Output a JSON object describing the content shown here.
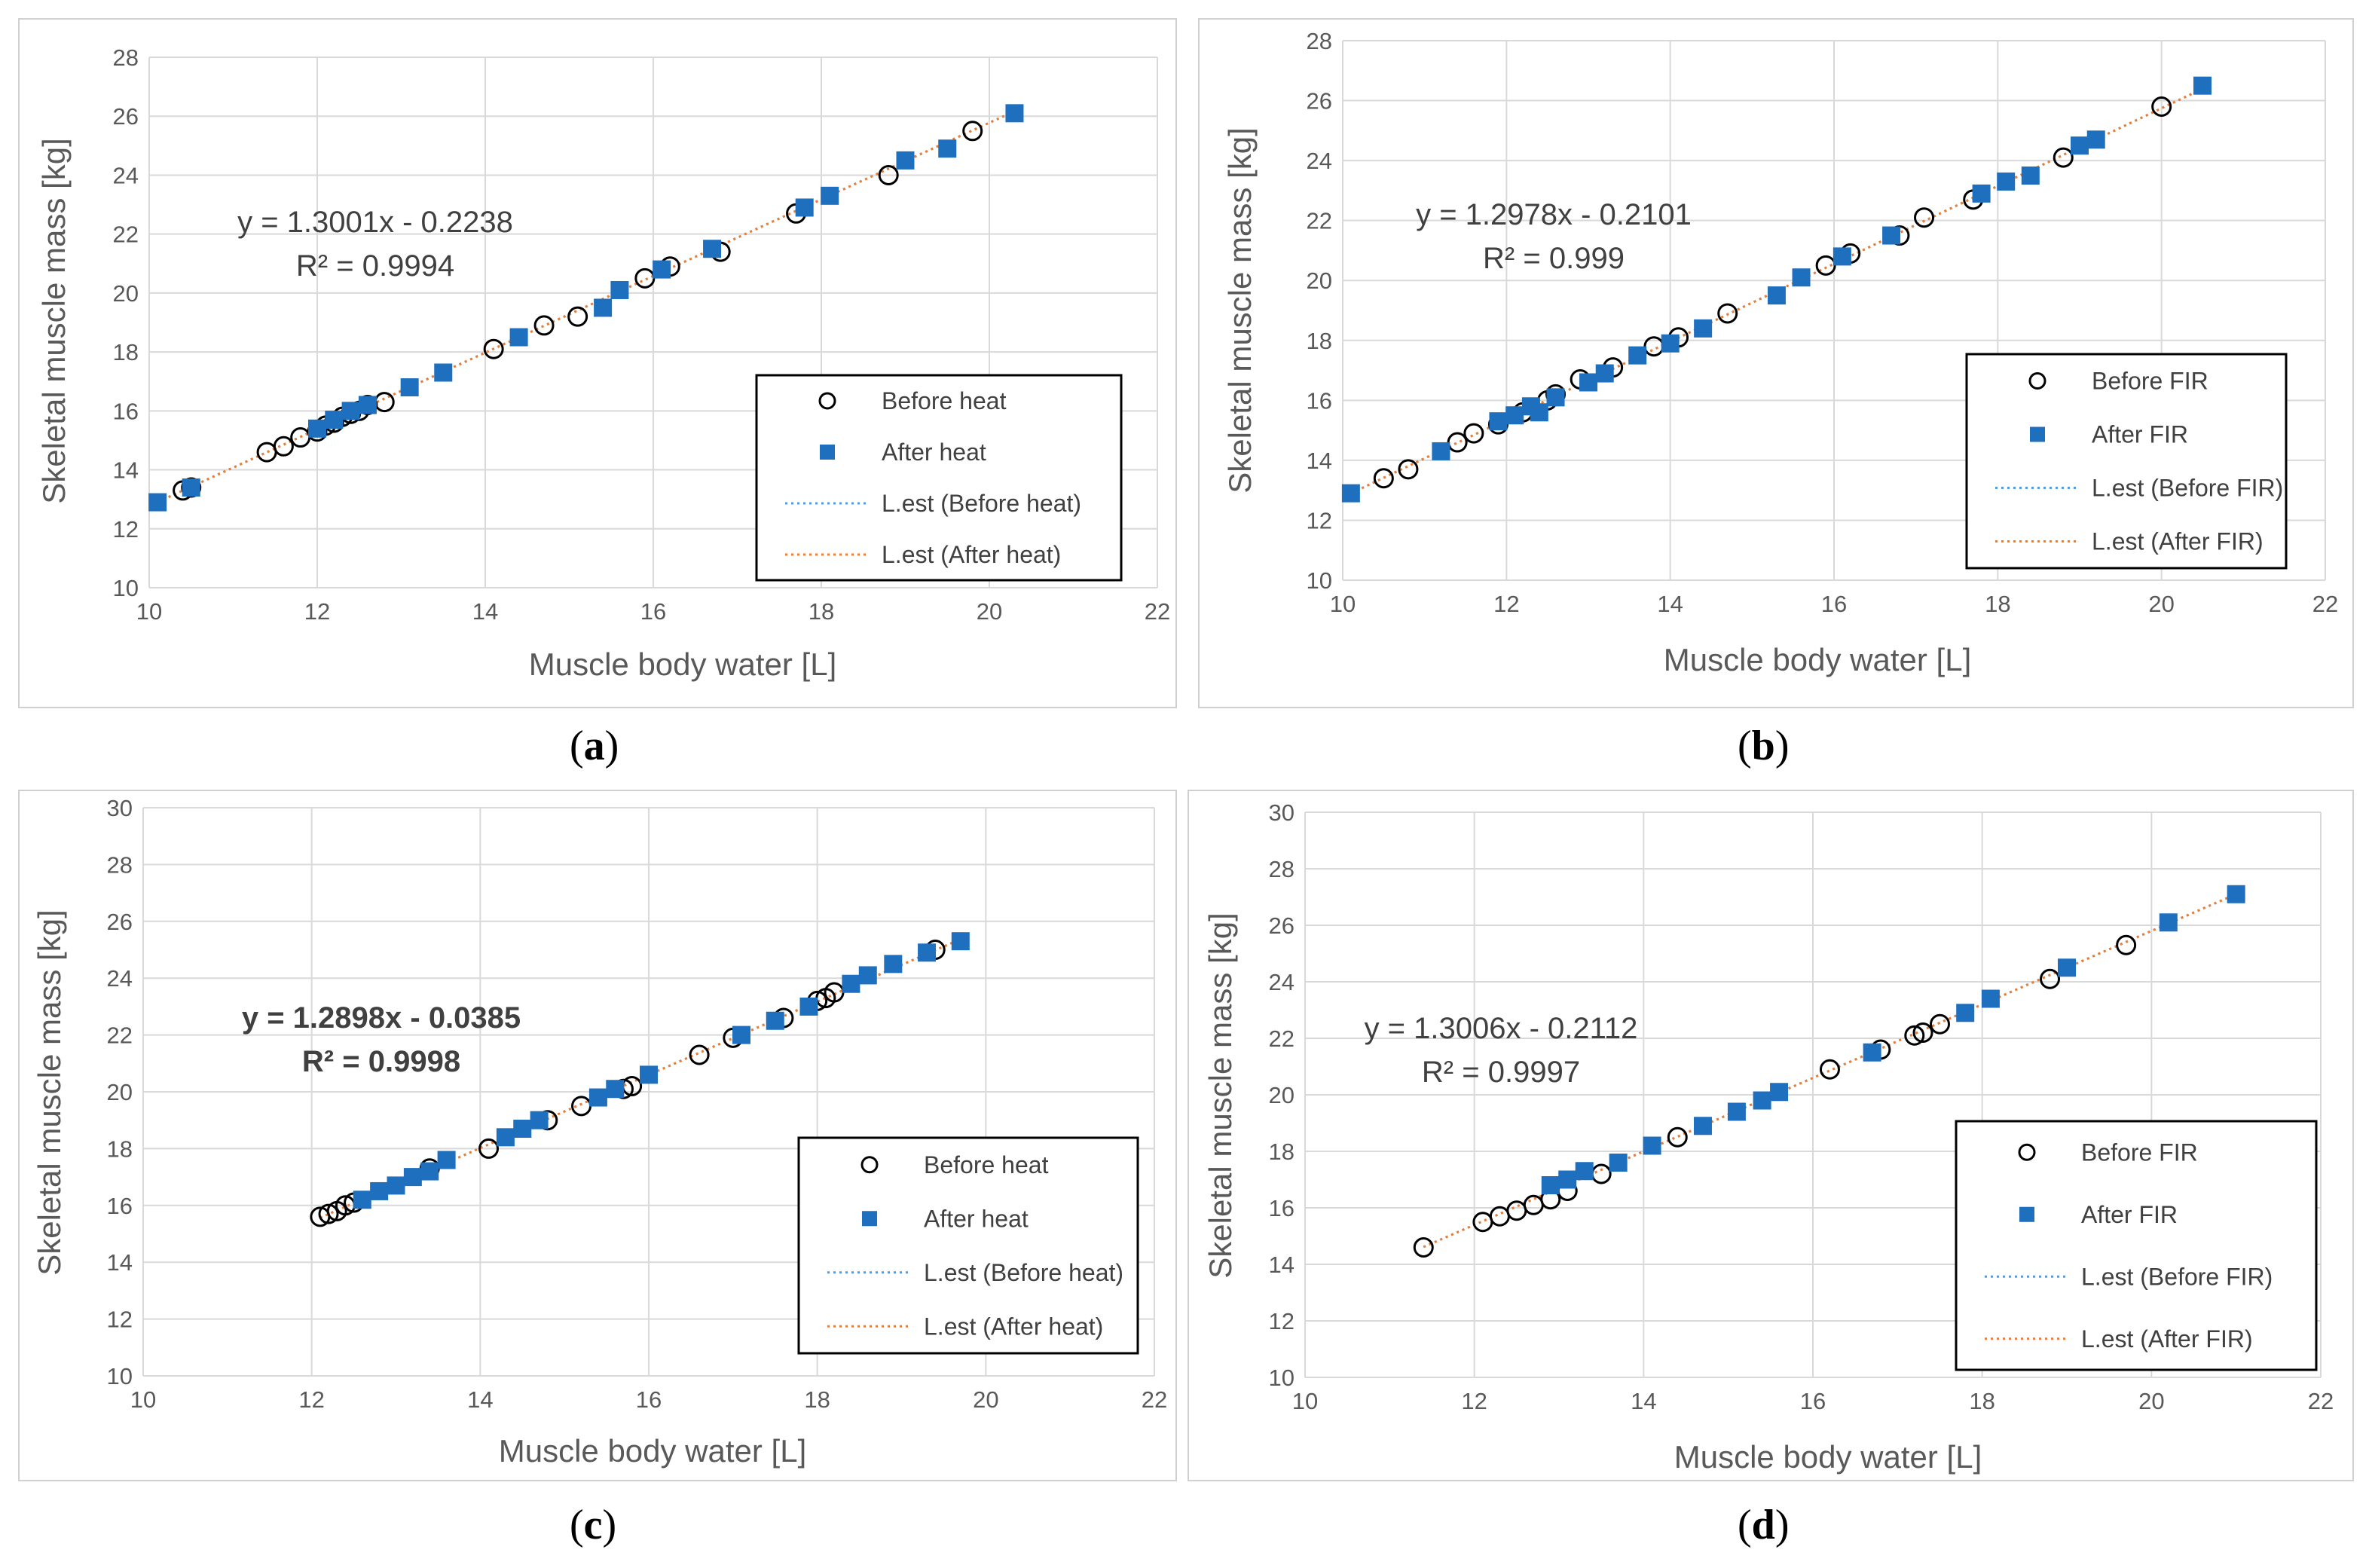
{
  "captions": [
    "a",
    "b",
    "c",
    "d"
  ],
  "colors": {
    "before_marker": "#000000",
    "after_marker": "#1f6fbf",
    "fit_before": "#5b9bd5",
    "fit_after": "#ed7d31",
    "grid": "#d9d9d9"
  },
  "chart_data": [
    {
      "id": "a",
      "type": "scatter",
      "xlabel": "Muscle body water [L]",
      "ylabel": "Skeletal muscle mass [kg]",
      "xlim": [
        10,
        22
      ],
      "ylim": [
        10,
        28
      ],
      "xticks": [
        "10",
        "12",
        "14",
        "16",
        "18",
        "20",
        "22"
      ],
      "yticks": [
        "10",
        "12",
        "14",
        "16",
        "18",
        "20",
        "22",
        "24",
        "26",
        "28"
      ],
      "equation": "y = 1.3001x - 0.2238",
      "r2": "R² = 0.9994",
      "equation_bold": false,
      "legend": [
        "Before heat",
        "After heat",
        "L.est (Before heat)",
        "L.est (After heat)"
      ],
      "fit": {
        "slope": 1.3001,
        "intercept": -0.2238,
        "x_range": [
          10.1,
          20.3
        ]
      },
      "series": [
        {
          "name": "Before heat",
          "marker": "circle",
          "x": [
            10.4,
            10.5,
            11.4,
            11.6,
            11.8,
            12.0,
            12.1,
            12.2,
            12.3,
            12.4,
            12.5,
            12.6,
            12.8,
            14.1,
            14.7,
            15.1,
            15.9,
            16.2,
            16.8,
            17.7,
            18.8,
            19.8
          ],
          "y": [
            13.3,
            13.4,
            14.6,
            14.8,
            15.1,
            15.3,
            15.5,
            15.6,
            15.8,
            15.9,
            16.0,
            16.2,
            16.3,
            18.1,
            18.9,
            19.2,
            20.5,
            20.9,
            21.4,
            22.7,
            24.0,
            25.5
          ]
        },
        {
          "name": "After heat",
          "marker": "square",
          "x": [
            10.1,
            10.5,
            12.0,
            12.2,
            12.4,
            12.6,
            13.1,
            13.5,
            14.4,
            15.4,
            15.6,
            16.1,
            16.7,
            17.8,
            18.1,
            19.0,
            19.5,
            20.3
          ],
          "y": [
            12.9,
            13.4,
            15.4,
            15.7,
            16.0,
            16.2,
            16.8,
            17.3,
            18.5,
            19.5,
            20.1,
            20.8,
            21.5,
            22.9,
            23.3,
            24.5,
            24.9,
            26.1
          ]
        }
      ]
    },
    {
      "id": "b",
      "type": "scatter",
      "xlabel": "Muscle body water [L]",
      "ylabel": "Skeletal muscle mass [kg]",
      "xlim": [
        10,
        22
      ],
      "ylim": [
        10,
        28
      ],
      "xticks": [
        "10",
        "12",
        "14",
        "16",
        "18",
        "20",
        "22"
      ],
      "yticks": [
        "10",
        "12",
        "14",
        "16",
        "18",
        "20",
        "22",
        "24",
        "26",
        "28"
      ],
      "equation": "y = 1.2978x - 0.2101",
      "r2": "R² = 0.999",
      "equation_bold": false,
      "legend": [
        "Before FIR",
        "After FIR",
        "L.est (Before FIR)",
        "L.est (After FIR)"
      ],
      "fit": {
        "slope": 1.2978,
        "intercept": -0.2101,
        "x_range": [
          10.1,
          20.5
        ]
      },
      "series": [
        {
          "name": "Before FIR",
          "marker": "circle",
          "x": [
            10.5,
            10.8,
            11.4,
            11.6,
            11.9,
            12.2,
            12.5,
            12.6,
            12.9,
            13.3,
            13.8,
            14.1,
            14.7,
            15.9,
            16.2,
            16.8,
            17.1,
            17.7,
            18.8,
            20.0
          ],
          "y": [
            13.4,
            13.7,
            14.6,
            14.9,
            15.2,
            15.6,
            16.0,
            16.2,
            16.7,
            17.1,
            17.8,
            18.1,
            18.9,
            20.5,
            20.9,
            21.5,
            22.1,
            22.7,
            24.1,
            25.8
          ]
        },
        {
          "name": "After FIR",
          "marker": "square",
          "x": [
            10.1,
            11.2,
            11.9,
            12.1,
            12.3,
            12.4,
            12.6,
            13.0,
            13.2,
            13.6,
            14.0,
            14.4,
            15.3,
            15.6,
            16.1,
            16.7,
            17.8,
            18.1,
            18.4,
            19.0,
            19.2,
            20.5
          ],
          "y": [
            12.9,
            14.3,
            15.3,
            15.5,
            15.8,
            15.6,
            16.1,
            16.6,
            16.9,
            17.5,
            17.9,
            18.4,
            19.5,
            20.1,
            20.8,
            21.5,
            22.9,
            23.3,
            23.5,
            24.5,
            24.7,
            26.5
          ]
        }
      ]
    },
    {
      "id": "c",
      "type": "scatter",
      "xlabel": "Muscle body water [L]",
      "ylabel": "Skeletal muscle mass [kg]",
      "xlim": [
        10,
        22
      ],
      "ylim": [
        10,
        30
      ],
      "xticks": [
        "10",
        "12",
        "14",
        "16",
        "18",
        "20",
        "22"
      ],
      "yticks": [
        "10",
        "12",
        "14",
        "16",
        "18",
        "20",
        "22",
        "24",
        "26",
        "28",
        "30"
      ],
      "equation": "y = 1.2898x - 0.0385",
      "r2": "R² = 0.9998",
      "equation_bold": true,
      "legend": [
        "Before heat",
        "After heat",
        "L.est (Before heat)",
        "L.est (After heat)"
      ],
      "fit": {
        "slope": 1.2898,
        "intercept": -0.0385,
        "x_range": [
          12.1,
          19.7
        ]
      },
      "series": [
        {
          "name": "Before heat",
          "marker": "circle",
          "x": [
            12.1,
            12.2,
            12.3,
            12.4,
            12.5,
            13.4,
            14.1,
            14.8,
            15.2,
            15.7,
            15.8,
            16.6,
            17.0,
            17.6,
            18.0,
            18.1,
            18.2,
            19.4
          ],
          "y": [
            15.6,
            15.7,
            15.8,
            16.0,
            16.1,
            17.3,
            18.0,
            19.0,
            19.5,
            20.1,
            20.2,
            21.3,
            21.9,
            22.6,
            23.2,
            23.3,
            23.5,
            25.0
          ]
        },
        {
          "name": "After heat",
          "marker": "square",
          "x": [
            12.6,
            12.8,
            13.0,
            13.2,
            13.4,
            13.6,
            14.3,
            14.5,
            14.7,
            15.4,
            15.6,
            16.0,
            17.1,
            17.5,
            17.9,
            18.4,
            18.6,
            18.9,
            19.3,
            19.7
          ],
          "y": [
            16.2,
            16.5,
            16.7,
            17.0,
            17.2,
            17.6,
            18.4,
            18.7,
            19.0,
            19.8,
            20.1,
            20.6,
            22.0,
            22.5,
            23.0,
            23.8,
            24.1,
            24.5,
            24.9,
            25.3
          ]
        }
      ]
    },
    {
      "id": "d",
      "type": "scatter",
      "xlabel": "Muscle body water [L]",
      "ylabel": "Skeletal muscle mass [kg]",
      "xlim": [
        10,
        22
      ],
      "ylim": [
        10,
        30
      ],
      "xticks": [
        "10",
        "12",
        "14",
        "16",
        "18",
        "20",
        "22"
      ],
      "yticks": [
        "10",
        "12",
        "14",
        "16",
        "18",
        "20",
        "22",
        "24",
        "26",
        "28",
        "30"
      ],
      "equation": "y = 1.3006x - 0.2112",
      "r2": "R² = 0.9997",
      "equation_bold": false,
      "legend": [
        "Before FIR",
        "After FIR",
        "L.est (Before FIR)",
        "L.est (After FIR)"
      ],
      "fit": {
        "slope": 1.3006,
        "intercept": -0.2112,
        "x_range": [
          11.4,
          21.0
        ]
      },
      "series": [
        {
          "name": "Before FIR",
          "marker": "circle",
          "x": [
            11.4,
            12.1,
            12.3,
            12.5,
            12.7,
            12.9,
            13.1,
            13.5,
            14.4,
            16.2,
            16.8,
            17.2,
            17.3,
            17.5,
            18.8,
            19.7
          ],
          "y": [
            14.6,
            15.5,
            15.7,
            15.9,
            16.1,
            16.3,
            16.6,
            17.2,
            18.5,
            20.9,
            21.6,
            22.1,
            22.2,
            22.5,
            24.1,
            25.3
          ]
        },
        {
          "name": "After FIR",
          "marker": "square",
          "x": [
            12.9,
            13.1,
            13.3,
            13.7,
            14.1,
            14.7,
            15.1,
            15.4,
            15.6,
            16.7,
            17.8,
            18.1,
            19.0,
            20.2,
            21.0
          ],
          "y": [
            16.8,
            17.0,
            17.3,
            17.6,
            18.2,
            18.9,
            19.4,
            19.8,
            20.1,
            21.5,
            22.9,
            23.4,
            24.5,
            26.1,
            27.1
          ]
        }
      ]
    }
  ]
}
